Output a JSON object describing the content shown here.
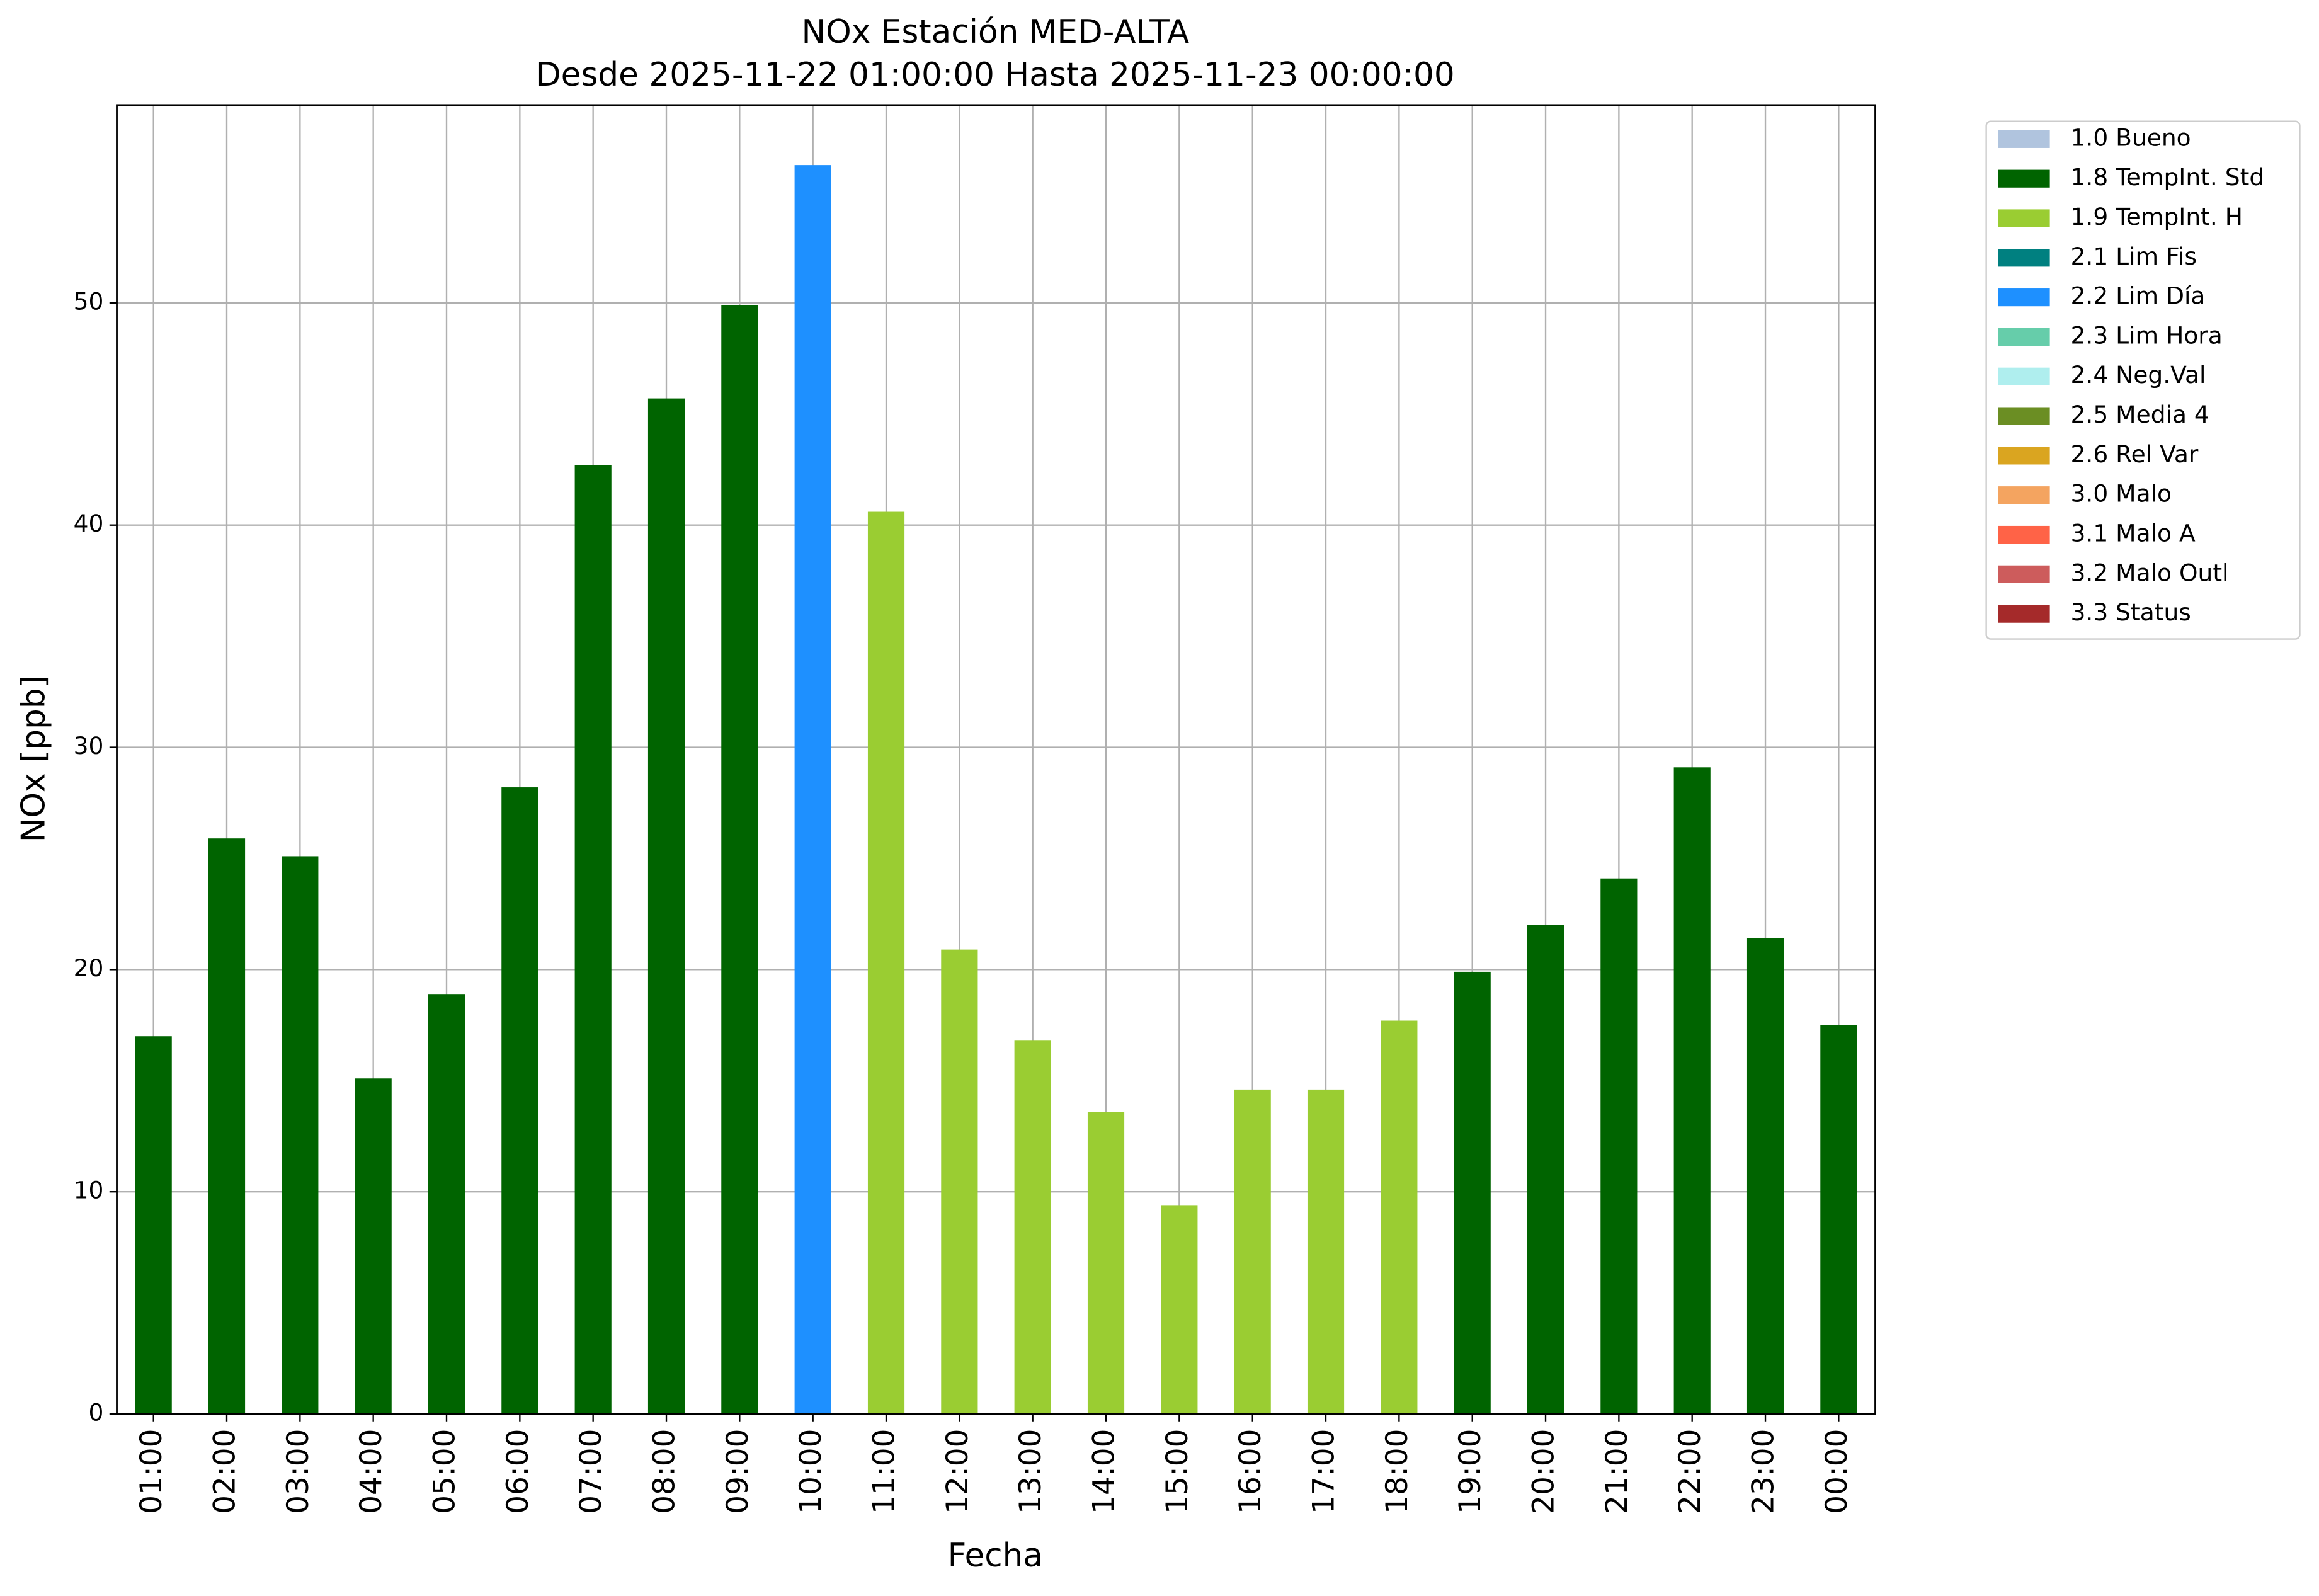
{
  "chart_data": {
    "type": "bar",
    "stacked": true,
    "title": "NOx Estación MED-ALTA",
    "subtitle": "Desde 2025-11-22 01:00:00 Hasta 2025-11-23 00:00:00",
    "x_label": "Fecha",
    "y_label": "NOx [ppb]",
    "categories": [
      "01:00",
      "02:00",
      "03:00",
      "04:00",
      "05:00",
      "06:00",
      "07:00",
      "08:00",
      "09:00",
      "10:00",
      "11:00",
      "12:00",
      "13:00",
      "14:00",
      "15:00",
      "16:00",
      "17:00",
      "18:00",
      "19:00",
      "20:00",
      "21:00",
      "22:00",
      "23:00",
      "00:00"
    ],
    "ylim": [
      0,
      58.9
    ],
    "yticks": [
      0,
      10,
      20,
      30,
      40,
      50
    ],
    "grid": true,
    "legend": "outside upper right",
    "series": [
      {
        "name": "1.0 Bueno",
        "color": "#b0c4de",
        "values": [
          null,
          null,
          null,
          null,
          null,
          null,
          null,
          null,
          null,
          null,
          null,
          null,
          null,
          null,
          null,
          null,
          null,
          null,
          null,
          null,
          null,
          null,
          null,
          null
        ]
      },
      {
        "name": "1.8 TempInt. Std",
        "color": "#006400",
        "values": [
          17.0,
          25.9,
          25.1,
          15.1,
          18.9,
          28.2,
          42.7,
          45.7,
          49.9,
          null,
          null,
          null,
          null,
          null,
          null,
          null,
          null,
          null,
          19.9,
          22.0,
          24.1,
          29.1,
          21.4,
          17.5
        ]
      },
      {
        "name": "1.9 TempInt. H",
        "color": "#9acd32",
        "values": [
          null,
          null,
          null,
          null,
          null,
          null,
          null,
          null,
          null,
          null,
          40.6,
          20.9,
          16.8,
          13.6,
          9.4,
          14.6,
          14.6,
          17.7,
          null,
          null,
          null,
          null,
          null,
          null
        ]
      },
      {
        "name": "2.1 Lim Fis",
        "color": "#008080",
        "values": [
          null,
          null,
          null,
          null,
          null,
          null,
          null,
          null,
          null,
          null,
          null,
          null,
          null,
          null,
          null,
          null,
          null,
          null,
          null,
          null,
          null,
          null,
          null,
          null
        ]
      },
      {
        "name": "2.2 Lim Día",
        "color": "#1e90ff",
        "values": [
          null,
          null,
          null,
          null,
          null,
          null,
          null,
          null,
          null,
          56.2,
          null,
          null,
          null,
          null,
          null,
          null,
          null,
          null,
          null,
          null,
          null,
          null,
          null,
          null
        ]
      },
      {
        "name": "2.3 Lim Hora",
        "color": "#66cdaa",
        "values": [
          null,
          null,
          null,
          null,
          null,
          null,
          null,
          null,
          null,
          null,
          null,
          null,
          null,
          null,
          null,
          null,
          null,
          null,
          null,
          null,
          null,
          null,
          null,
          null
        ]
      },
      {
        "name": "2.4 Neg.Val",
        "color": "#afeeee",
        "values": [
          null,
          null,
          null,
          null,
          null,
          null,
          null,
          null,
          null,
          null,
          null,
          null,
          null,
          null,
          null,
          null,
          null,
          null,
          null,
          null,
          null,
          null,
          null,
          null
        ]
      },
      {
        "name": "2.5 Media 4",
        "color": "#6b8e23",
        "values": [
          null,
          null,
          null,
          null,
          null,
          null,
          null,
          null,
          null,
          null,
          null,
          null,
          null,
          null,
          null,
          null,
          null,
          null,
          null,
          null,
          null,
          null,
          null,
          null
        ]
      },
      {
        "name": "2.6 Rel Var",
        "color": "#daa520",
        "values": [
          null,
          null,
          null,
          null,
          null,
          null,
          null,
          null,
          null,
          null,
          null,
          null,
          null,
          null,
          null,
          null,
          null,
          null,
          null,
          null,
          null,
          null,
          null,
          null
        ]
      },
      {
        "name": "3.0 Malo",
        "color": "#f4a460",
        "values": [
          null,
          null,
          null,
          null,
          null,
          null,
          null,
          null,
          null,
          null,
          null,
          null,
          null,
          null,
          null,
          null,
          null,
          null,
          null,
          null,
          null,
          null,
          null,
          null
        ]
      },
      {
        "name": "3.1 Malo A",
        "color": "#ff6347",
        "values": [
          null,
          null,
          null,
          null,
          null,
          null,
          null,
          null,
          null,
          null,
          null,
          null,
          null,
          null,
          null,
          null,
          null,
          null,
          null,
          null,
          null,
          null,
          null,
          null
        ]
      },
      {
        "name": "3.2 Malo Outl",
        "color": "#cd5c5c",
        "values": [
          null,
          null,
          null,
          null,
          null,
          null,
          null,
          null,
          null,
          null,
          null,
          null,
          null,
          null,
          null,
          null,
          null,
          null,
          null,
          null,
          null,
          null,
          null,
          null
        ]
      },
      {
        "name": "3.3 Status",
        "color": "#a52a2a",
        "values": [
          null,
          null,
          null,
          null,
          null,
          null,
          null,
          null,
          null,
          null,
          null,
          null,
          null,
          null,
          null,
          null,
          null,
          null,
          null,
          null,
          null,
          null,
          null,
          null
        ]
      }
    ]
  }
}
